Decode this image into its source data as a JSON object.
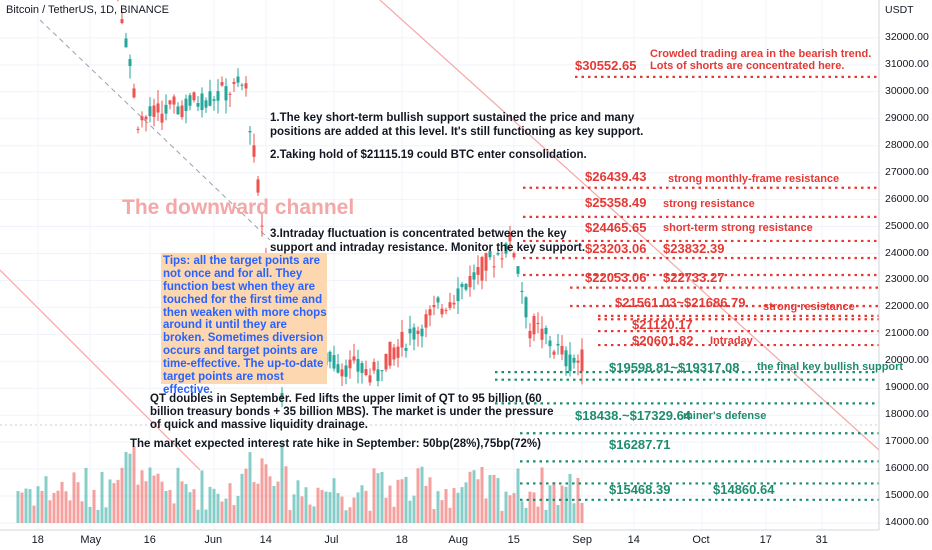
{
  "header": {
    "title": "Bitcoin / TetherUS, 1D, BINANCE",
    "currency": "USDT"
  },
  "y_axis": {
    "ticks": [
      "32000.00",
      "31000.00",
      "30000.00",
      "29000.00",
      "28000.00",
      "27000.00",
      "26000.00",
      "25000.00",
      "24000.00",
      "23000.00",
      "22000.00",
      "21000.00",
      "20000.00",
      "19000.00",
      "18000.00",
      "17000.00",
      "16000.00",
      "15000.00",
      "14000.00"
    ]
  },
  "x_axis": {
    "ticks": [
      "18",
      "May",
      "16",
      "Jun",
      "14",
      "Jul",
      "18",
      "Aug",
      "15",
      "Sep",
      "14",
      "Oct",
      "17",
      "31"
    ]
  },
  "colors": {
    "resistance": "#e53935",
    "support": "#1e8c6e",
    "up_candle": "#26a69a",
    "down_candle": "#ef5350",
    "tips_bg": "#fcd7b0",
    "tips_text": "#2962ff"
  },
  "annotations": {
    "channel_label": "The downward channel",
    "tips": "Tips: all the target points are not once and for all. They function best when they are touched for the first time and then weaken with more chops around it until they are broken. Sometimes diversion occurs and target points are time-effective. The up-to-date target points are most effective.",
    "note1_line1": "1.The key short-term bullish support sustained the price and many",
    "note1_line2": "positions are added at this level. It's still functioning as key support.",
    "note2": "2.Taking hold of $21115.19 could BTC enter consolidation.",
    "note3_line1": "3.Intraday fluctuation is concentrated between the key",
    "note3_line2": "support and intraday resistance. Monitor the key support.",
    "qt_line1": "QT doubles in September. Fed lifts the upper limit of QT to 95 billion (60",
    "qt_line2": "billion treasury bonds + 35 billion MBS). The market is under the pressure",
    "qt_line3": "of quick and massive liquidity drainage.",
    "rate_note": "The market expected interest rate hike in September: 50bp(28%),75bp(72%)"
  },
  "levels": {
    "r1_price": "$30552.65",
    "r1_note_line1": "Crowded trading area in the bearish trend.",
    "r1_note_line2": "Lots of shorts are concentrated here.",
    "r2_price": "$26439.43",
    "r2_label": "strong monthly-frame resistance",
    "r3_price": "$25358.49",
    "r3_label": "strong resistance",
    "r4_price": "$24465.65",
    "r4_label": "short-term strong resistance",
    "r5_price_a": "$23203.06",
    "r5_price_b": "$23832.39",
    "r6_price_a": "$22053.06",
    "r6_price_b": "$22733.27",
    "r7_price": "$21561.03~$21686.79",
    "r7_label": "strong resistance",
    "r8_price": "$21120.17",
    "r9_price": "$20601.82",
    "r9_label": "Intraday",
    "s1_price": "$19598.81~$19317.08",
    "s1_label": "the final key bullish support",
    "s2_price": "$18438.~$17329.64",
    "s2_label": "miner's defense",
    "s3_price": "$16287.71",
    "s4_price_a": "$15468.39",
    "s4_price_b": "$14860.64"
  },
  "chart_data": {
    "type": "candlestick",
    "title": "Bitcoin / TetherUS, 1D, BINANCE",
    "ylabel": "USDT",
    "ylim": [
      14000,
      33000
    ],
    "x_range": [
      "2022-04-13",
      "2022-11-01"
    ],
    "ohlc_segments": [
      {
        "from": "2022-04-13",
        "to": "2022-05-05",
        "open": 40000,
        "close": 39000,
        "note": "above chart range"
      },
      {
        "from": "2022-05-06",
        "to": "2022-05-13",
        "open": 36000,
        "close": 29000
      },
      {
        "from": "2022-05-14",
        "to": "2022-06-08",
        "open": 29000,
        "close": 30200
      },
      {
        "from": "2022-06-09",
        "to": "2022-06-18",
        "open": 30100,
        "close": 19000
      },
      {
        "from": "2022-06-19",
        "to": "2022-07-12",
        "open": 20500,
        "close": 19500
      },
      {
        "from": "2022-07-13",
        "to": "2022-08-14",
        "open": 20000,
        "close": 24400
      },
      {
        "from": "2022-08-15",
        "to": "2022-08-19",
        "open": 24200,
        "close": 21200
      },
      {
        "from": "2022-08-20",
        "to": "2022-08-28",
        "open": 21300,
        "close": 20100
      },
      {
        "from": "2022-08-29",
        "to": "2022-09-01",
        "open": 20000,
        "close": 20050
      }
    ],
    "horizontal_levels": {
      "resistance": [
        30552.65,
        26439.43,
        25358.49,
        24465.65,
        23832.39,
        23203.06,
        22733.27,
        22053.06,
        21686.79,
        21561.03,
        21120.17,
        20601.82
      ],
      "support": [
        19598.81,
        19317.08,
        18438,
        17329.64,
        16287.71,
        15468.39,
        14860.64
      ]
    },
    "volume": "present (relative bars at bottom)"
  }
}
